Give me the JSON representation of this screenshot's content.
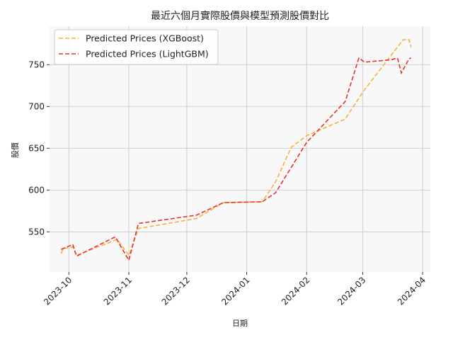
{
  "chart_data": {
    "type": "line",
    "title": "最近六個月實際股價與模型預測股價對比",
    "xlabel": "日期",
    "ylabel": "股價",
    "x_axis_type": "date",
    "xlim": [
      "2023-09-21",
      "2024-04-05"
    ],
    "ylim": [
      502,
      796
    ],
    "xticks": [
      "2023-10-01",
      "2023-11-01",
      "2023-12-01",
      "2024-01-01",
      "2024-02-01",
      "2024-03-01",
      "2024-04-01"
    ],
    "xtick_labels": [
      "2023-10",
      "2023-11",
      "2023-12",
      "2024-01",
      "2024-02",
      "2024-03",
      "2024-04"
    ],
    "yticks": [
      550,
      600,
      650,
      700,
      750
    ],
    "ytick_labels": [
      "550",
      "600",
      "650",
      "700",
      "750"
    ],
    "grid": true,
    "legend_position": "top-left",
    "background_color": "#f8f8f8",
    "grid_color": "#cfcfcf",
    "series": [
      {
        "name": "Predicted Prices (XGBoost)",
        "color": "#f5b23b",
        "dash": "dashed",
        "x": [
          "2023-09-27",
          "2023-09-28",
          "2023-10-03",
          "2023-10-05",
          "2023-10-26",
          "2023-11-01",
          "2023-11-06",
          "2023-12-06",
          "2023-12-20",
          "2024-01-09",
          "2024-01-16",
          "2024-01-24",
          "2024-02-01",
          "2024-02-21",
          "2024-03-01",
          "2024-03-22",
          "2024-03-25",
          "2024-03-26"
        ],
        "y": [
          524,
          530,
          532,
          522,
          541,
          522,
          554,
          566,
          585,
          586,
          610,
          651,
          665,
          685,
          717,
          780,
          780,
          771
        ]
      },
      {
        "name": "Predicted Prices (LightGBM)",
        "color": "#e8322f",
        "dash": "dashed",
        "x": [
          "2023-09-27",
          "2023-10-03",
          "2023-10-05",
          "2023-10-25",
          "2023-11-01",
          "2023-11-06",
          "2023-12-06",
          "2023-12-20",
          "2024-01-09",
          "2024-01-16",
          "2024-02-01",
          "2024-02-21",
          "2024-02-28",
          "2024-03-02",
          "2024-03-16",
          "2024-03-19",
          "2024-03-21",
          "2024-03-25",
          "2024-03-26"
        ],
        "y": [
          529,
          535,
          521,
          544,
          516,
          560,
          570,
          585,
          586,
          597,
          657,
          706,
          758,
          753,
          756,
          758,
          740,
          757,
          758
        ]
      }
    ]
  }
}
